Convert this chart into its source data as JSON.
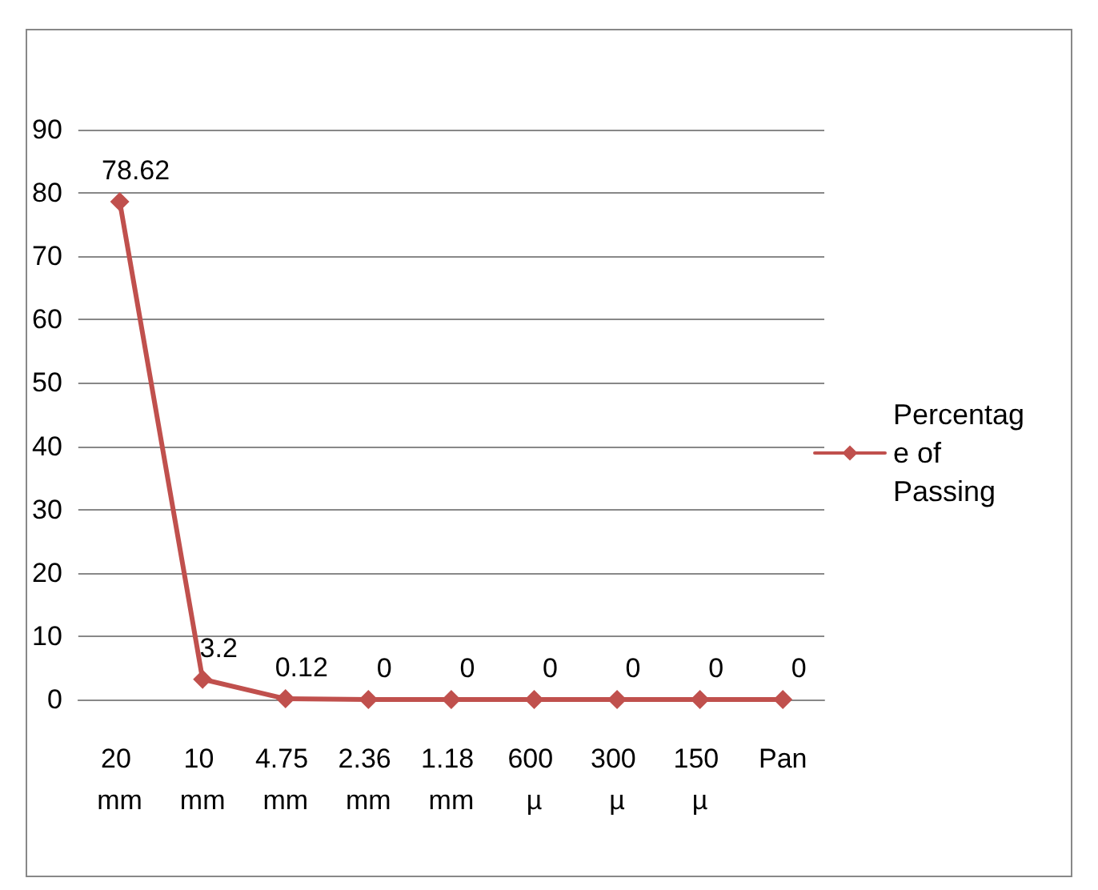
{
  "chart_data": {
    "type": "line",
    "categories": [
      "20 mm",
      "10 mm",
      "4.75 mm",
      "2.36 mm",
      "1.18 mm",
      "600 µ",
      "300 µ",
      "150 µ",
      "Pan"
    ],
    "series": [
      {
        "name": "Percentage of Passing",
        "color": "#c0504d",
        "values": [
          78.62,
          3.2,
          0.12,
          0,
          0,
          0,
          0,
          0,
          0
        ]
      }
    ],
    "ylim": [
      0,
      90
    ],
    "yticks": [
      0,
      10,
      20,
      30,
      40,
      50,
      60,
      70,
      80,
      90
    ],
    "grid": "y",
    "legend": "right",
    "marker": "diamond",
    "line_style": "solid",
    "data_labels": true
  }
}
